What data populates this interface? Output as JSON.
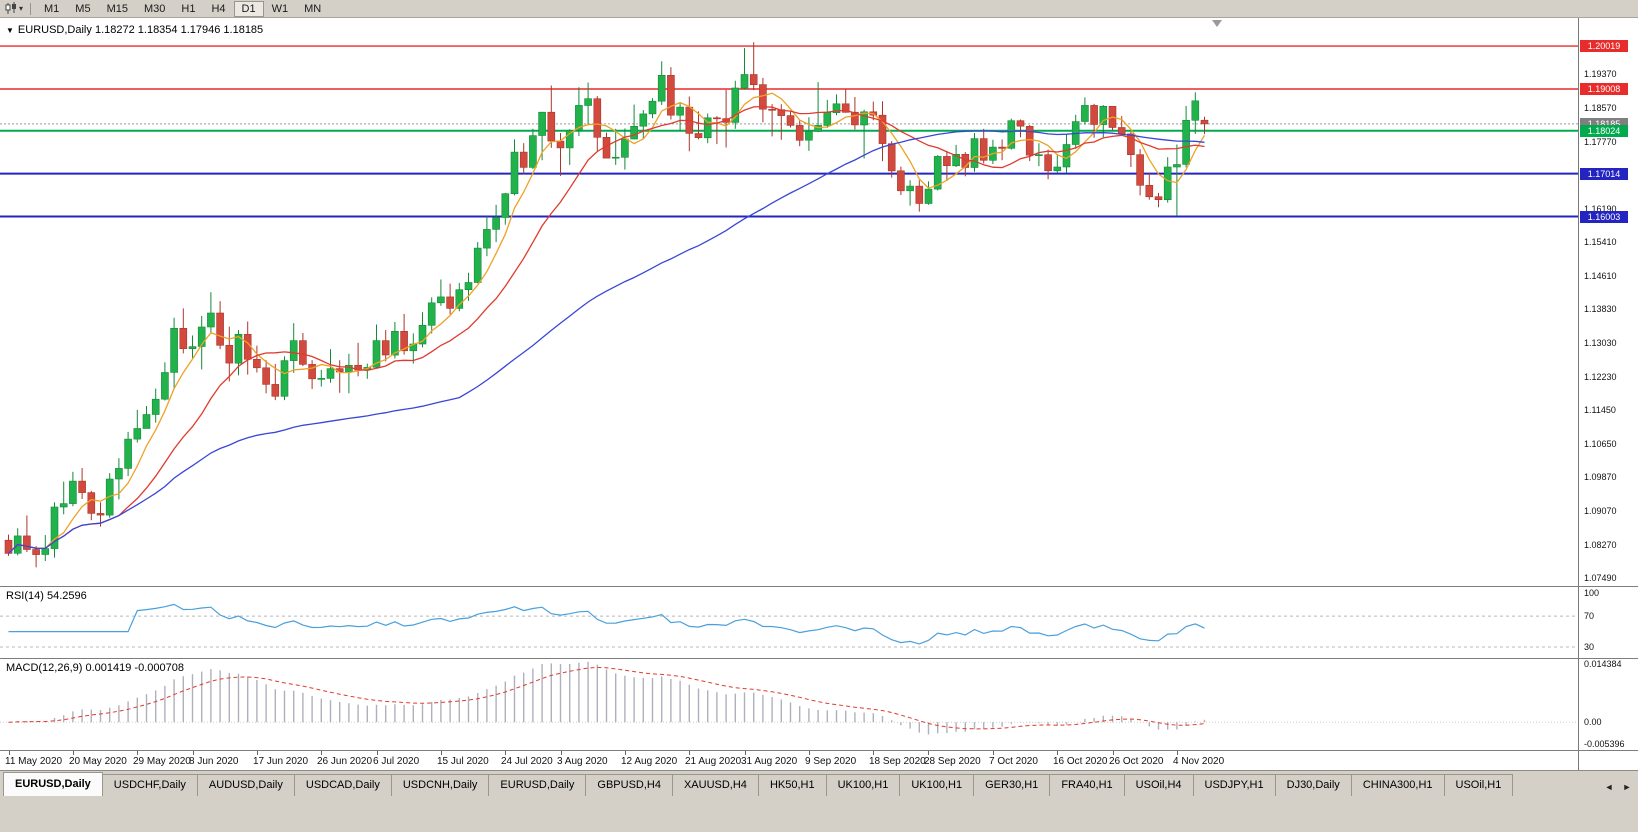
{
  "toolbar": {
    "chart_type_icon": "candlestick-chart",
    "dropdown_glyph": "▾",
    "timeframes": [
      "M1",
      "M5",
      "M15",
      "M30",
      "H1",
      "H4",
      "D1",
      "W1",
      "MN"
    ],
    "active_timeframe": "D1"
  },
  "chart": {
    "dropdown_glyph": "▼",
    "title_symbol": "EURUSD,Daily",
    "title_ohlc": "1.18272 1.18354 1.17946 1.18185"
  },
  "chart_data": {
    "type": "candlestick",
    "symbol": "EURUSD",
    "timeframe": "Daily",
    "ohlc_current": {
      "open": 1.18272,
      "high": 1.18354,
      "low": 1.17946,
      "close": 1.18185
    },
    "ylim": [
      1.073,
      1.2068
    ],
    "up_color": "#21b24b",
    "up_stroke": "#128a38",
    "down_color": "#d2493e",
    "down_stroke": "#a8362c",
    "price_ticks": [
      "1.19370",
      "1.18570",
      "1.17770",
      "1.16970",
      "1.16190",
      "1.15410",
      "1.14610",
      "1.13830",
      "1.13030",
      "1.12230",
      "1.11450",
      "1.10650",
      "1.09870",
      "1.09070",
      "1.08270",
      "1.07490"
    ],
    "levels": [
      {
        "price": 1.20019,
        "label": "1.20019",
        "color": "#e82c2c",
        "width": 1.4
      },
      {
        "price": 1.19008,
        "label": "1.19008",
        "color": "#e82c2c",
        "width": 1.4
      },
      {
        "price": 1.18024,
        "label": "1.18024",
        "color": "#00ab4e",
        "width": 2
      },
      {
        "price": 1.17014,
        "label": "1.17014",
        "color": "#2424c0",
        "width": 2
      },
      {
        "price": 1.16003,
        "label": "1.16003",
        "color": "#2424c0",
        "width": 2
      }
    ],
    "current_price": {
      "value": 1.18185,
      "label": "1.18185",
      "line_color": "#9a9a9a",
      "tag_color": "#7f7f7f"
    },
    "moving_averages": [
      {
        "period": 5,
        "color": "#efa126"
      },
      {
        "period": 13,
        "color": "#e03a2e"
      },
      {
        "period": 50,
        "color": "#3947d6"
      }
    ],
    "date_labels": [
      {
        "i": 0,
        "t": "11 May 2020"
      },
      {
        "i": 7,
        "t": "20 May 2020"
      },
      {
        "i": 14,
        "t": "29 May 2020"
      },
      {
        "i": 20,
        "t": "8 Jun 2020"
      },
      {
        "i": 27,
        "t": "17 Jun 2020"
      },
      {
        "i": 34,
        "t": "26 Jun 2020"
      },
      {
        "i": 40,
        "t": "6 Jul 2020"
      },
      {
        "i": 47,
        "t": "15 Jul 2020"
      },
      {
        "i": 54,
        "t": "24 Jul 2020"
      },
      {
        "i": 60,
        "t": "3 Aug 2020"
      },
      {
        "i": 67,
        "t": "12 Aug 2020"
      },
      {
        "i": 74,
        "t": "21 Aug 2020"
      },
      {
        "i": 80,
        "t": "31 Aug 2020"
      },
      {
        "i": 87,
        "t": "9 Sep 2020"
      },
      {
        "i": 94,
        "t": "18 Sep 2020"
      },
      {
        "i": 100,
        "t": "28 Sep 2020"
      },
      {
        "i": 107,
        "t": "7 Oct 2020"
      },
      {
        "i": 114,
        "t": "16 Oct 2020"
      },
      {
        "i": 120,
        "t": "26 Oct 2020"
      },
      {
        "i": 127,
        "t": "4 Nov 2020"
      }
    ],
    "candles": [
      [
        1.0838,
        1.0851,
        1.0801,
        1.0807
      ],
      [
        1.0807,
        1.0866,
        1.0802,
        1.0848
      ],
      [
        1.0848,
        1.0896,
        1.081,
        1.0816
      ],
      [
        1.0816,
        1.0824,
        1.0774,
        1.0804
      ],
      [
        1.0804,
        1.085,
        1.0789,
        1.0818
      ],
      [
        1.0818,
        1.0927,
        1.0797,
        1.0916
      ],
      [
        1.0916,
        1.0976,
        1.0899,
        1.0924
      ],
      [
        1.0924,
        1.0999,
        1.0918,
        1.0977
      ],
      [
        1.0977,
        1.1008,
        1.0935,
        1.095
      ],
      [
        1.095,
        1.0954,
        1.0885,
        1.0901
      ],
      [
        1.0901,
        1.0927,
        1.087,
        1.0897
      ],
      [
        1.0897,
        1.0996,
        1.0891,
        1.0982
      ],
      [
        1.0982,
        1.1031,
        1.0934,
        1.1007
      ],
      [
        1.1007,
        1.1093,
        1.0989,
        1.1076
      ],
      [
        1.1076,
        1.1145,
        1.1068,
        1.1101
      ],
      [
        1.1101,
        1.1154,
        1.1101,
        1.1134
      ],
      [
        1.1134,
        1.1195,
        1.1115,
        1.117
      ],
      [
        1.117,
        1.1257,
        1.1167,
        1.1233
      ],
      [
        1.1233,
        1.1362,
        1.1194,
        1.1337
      ],
      [
        1.1337,
        1.1384,
        1.1278,
        1.1289
      ],
      [
        1.1289,
        1.132,
        1.1267,
        1.1294
      ],
      [
        1.1294,
        1.1366,
        1.124,
        1.134
      ],
      [
        1.134,
        1.1422,
        1.1324,
        1.1373
      ],
      [
        1.1373,
        1.1401,
        1.1288,
        1.1297
      ],
      [
        1.1297,
        1.1341,
        1.1212,
        1.1255
      ],
      [
        1.1255,
        1.1333,
        1.1226,
        1.1323
      ],
      [
        1.1323,
        1.1353,
        1.1228,
        1.1264
      ],
      [
        1.1264,
        1.1296,
        1.1233,
        1.1244
      ],
      [
        1.1244,
        1.1262,
        1.1184,
        1.1205
      ],
      [
        1.1205,
        1.1253,
        1.1168,
        1.1177
      ],
      [
        1.1177,
        1.1271,
        1.1168,
        1.1261
      ],
      [
        1.1261,
        1.1349,
        1.1232,
        1.1308
      ],
      [
        1.1308,
        1.1326,
        1.1248,
        1.1252
      ],
      [
        1.1252,
        1.1262,
        1.1194,
        1.1218
      ],
      [
        1.1218,
        1.1239,
        1.12,
        1.1219
      ],
      [
        1.1219,
        1.1288,
        1.1209,
        1.1242
      ],
      [
        1.1242,
        1.1262,
        1.1185,
        1.1234
      ],
      [
        1.1234,
        1.1277,
        1.1184,
        1.125
      ],
      [
        1.125,
        1.1303,
        1.1224,
        1.1239
      ],
      [
        1.1239,
        1.1254,
        1.1218,
        1.1245
      ],
      [
        1.1245,
        1.1346,
        1.1243,
        1.1308
      ],
      [
        1.1308,
        1.1333,
        1.1259,
        1.1274
      ],
      [
        1.1274,
        1.1352,
        1.1266,
        1.133
      ],
      [
        1.133,
        1.1371,
        1.1275,
        1.1284
      ],
      [
        1.1284,
        1.1325,
        1.1254,
        1.13
      ],
      [
        1.13,
        1.1375,
        1.1292,
        1.1344
      ],
      [
        1.1344,
        1.141,
        1.1325,
        1.1397
      ],
      [
        1.1397,
        1.1452,
        1.139,
        1.1411
      ],
      [
        1.1411,
        1.1442,
        1.137,
        1.1384
      ],
      [
        1.1384,
        1.1444,
        1.1377,
        1.1428
      ],
      [
        1.1428,
        1.1468,
        1.1402,
        1.1445
      ],
      [
        1.1445,
        1.154,
        1.1443,
        1.1526
      ],
      [
        1.1526,
        1.1601,
        1.1507,
        1.157
      ],
      [
        1.157,
        1.1628,
        1.154,
        1.1598
      ],
      [
        1.1598,
        1.1656,
        1.1581,
        1.1654
      ],
      [
        1.1654,
        1.1782,
        1.165,
        1.1752
      ],
      [
        1.1752,
        1.1773,
        1.17,
        1.1716
      ],
      [
        1.1716,
        1.1807,
        1.1712,
        1.1791
      ],
      [
        1.1791,
        1.1847,
        1.1733,
        1.1846
      ],
      [
        1.1846,
        1.1909,
        1.1762,
        1.1778
      ],
      [
        1.1778,
        1.1797,
        1.1696,
        1.1762
      ],
      [
        1.1762,
        1.1806,
        1.1722,
        1.1803
      ],
      [
        1.1803,
        1.1905,
        1.179,
        1.1862
      ],
      [
        1.1862,
        1.1916,
        1.1818,
        1.1878
      ],
      [
        1.1878,
        1.1884,
        1.1754,
        1.1787
      ],
      [
        1.1787,
        1.1798,
        1.1737,
        1.1738
      ],
      [
        1.1738,
        1.1807,
        1.1722,
        1.174
      ],
      [
        1.174,
        1.1808,
        1.1711,
        1.1783
      ],
      [
        1.1783,
        1.1864,
        1.1782,
        1.1813
      ],
      [
        1.1813,
        1.1851,
        1.1782,
        1.1842
      ],
      [
        1.1842,
        1.1879,
        1.1832,
        1.1872
      ],
      [
        1.1872,
        1.1966,
        1.1863,
        1.1933
      ],
      [
        1.1933,
        1.1952,
        1.1829,
        1.1839
      ],
      [
        1.1839,
        1.1868,
        1.1801,
        1.1858
      ],
      [
        1.1858,
        1.1883,
        1.1754,
        1.1796
      ],
      [
        1.1796,
        1.1848,
        1.1782,
        1.1786
      ],
      [
        1.1786,
        1.1843,
        1.1773,
        1.1833
      ],
      [
        1.1833,
        1.1837,
        1.1771,
        1.1831
      ],
      [
        1.1831,
        1.1899,
        1.1763,
        1.1822
      ],
      [
        1.1822,
        1.192,
        1.1807,
        1.1903
      ],
      [
        1.1903,
        1.1997,
        1.1899,
        1.1935
      ],
      [
        1.1935,
        1.2011,
        1.1898,
        1.1911
      ],
      [
        1.1911,
        1.1927,
        1.1822,
        1.1853
      ],
      [
        1.1853,
        1.1865,
        1.1789,
        1.1852
      ],
      [
        1.1852,
        1.1865,
        1.1781,
        1.1838
      ],
      [
        1.1838,
        1.1848,
        1.181,
        1.1815
      ],
      [
        1.1815,
        1.1827,
        1.1766,
        1.178
      ],
      [
        1.178,
        1.1834,
        1.1755,
        1.1801
      ],
      [
        1.1801,
        1.1917,
        1.1799,
        1.1815
      ],
      [
        1.1815,
        1.1875,
        1.1809,
        1.1845
      ],
      [
        1.1845,
        1.1888,
        1.1839,
        1.1866
      ],
      [
        1.1866,
        1.19,
        1.1845,
        1.1846
      ],
      [
        1.1846,
        1.1882,
        1.1805,
        1.1816
      ],
      [
        1.1816,
        1.1852,
        1.1737,
        1.1847
      ],
      [
        1.1847,
        1.1871,
        1.1827,
        1.1839
      ],
      [
        1.1839,
        1.1872,
        1.1731,
        1.1772
      ],
      [
        1.1772,
        1.1778,
        1.1692,
        1.1708
      ],
      [
        1.1708,
        1.1718,
        1.1651,
        1.1661
      ],
      [
        1.1661,
        1.1686,
        1.1626,
        1.1672
      ],
      [
        1.1672,
        1.1686,
        1.1612,
        1.1631
      ],
      [
        1.1631,
        1.1683,
        1.1628,
        1.1665
      ],
      [
        1.1665,
        1.1745,
        1.1662,
        1.1742
      ],
      [
        1.1742,
        1.1755,
        1.1684,
        1.172
      ],
      [
        1.172,
        1.1769,
        1.1717,
        1.1747
      ],
      [
        1.1747,
        1.1752,
        1.1695,
        1.1716
      ],
      [
        1.1716,
        1.1797,
        1.1706,
        1.1784
      ],
      [
        1.1784,
        1.1807,
        1.1725,
        1.1733
      ],
      [
        1.1733,
        1.1781,
        1.1724,
        1.1764
      ],
      [
        1.1764,
        1.1782,
        1.1733,
        1.1761
      ],
      [
        1.1761,
        1.1831,
        1.1758,
        1.1826
      ],
      [
        1.1826,
        1.1829,
        1.1787,
        1.1813
      ],
      [
        1.1813,
        1.1816,
        1.1731,
        1.1745
      ],
      [
        1.1745,
        1.1773,
        1.1719,
        1.1746
      ],
      [
        1.1746,
        1.1758,
        1.1688,
        1.1708
      ],
      [
        1.1708,
        1.1747,
        1.1704,
        1.1717
      ],
      [
        1.1717,
        1.1794,
        1.1703,
        1.177
      ],
      [
        1.177,
        1.184,
        1.176,
        1.1824
      ],
      [
        1.1824,
        1.1881,
        1.1817,
        1.1862
      ],
      [
        1.1862,
        1.1866,
        1.1786,
        1.1817
      ],
      [
        1.1817,
        1.1863,
        1.1787,
        1.186
      ],
      [
        1.186,
        1.186,
        1.1803,
        1.181
      ],
      [
        1.181,
        1.1837,
        1.1793,
        1.1795
      ],
      [
        1.1795,
        1.18,
        1.1717,
        1.1746
      ],
      [
        1.1746,
        1.1759,
        1.165,
        1.1674
      ],
      [
        1.1674,
        1.1704,
        1.164,
        1.1647
      ],
      [
        1.1647,
        1.1656,
        1.1622,
        1.164
      ],
      [
        1.164,
        1.174,
        1.1633,
        1.1717
      ],
      [
        1.1717,
        1.177,
        1.1603,
        1.1723
      ],
      [
        1.1723,
        1.1861,
        1.1716,
        1.1827
      ],
      [
        1.1827,
        1.1893,
        1.1795,
        1.1873
      ],
      [
        1.18272,
        1.18354,
        1.17946,
        1.18185
      ]
    ]
  },
  "rsi": {
    "label": "RSI(14) 54.2596",
    "period": 14,
    "value": 54.2596,
    "line_color": "#4aa0dc",
    "axis_ticks": [
      {
        "v": 100,
        "t": "100"
      },
      {
        "v": 70,
        "t": "70"
      },
      {
        "v": 30,
        "t": "30"
      }
    ],
    "dashed_levels": [
      70,
      30
    ]
  },
  "macd": {
    "label": "MACD(12,26,9) 0.001419 -0.000708",
    "fast": 12,
    "slow": 26,
    "signal": 9,
    "main_value": 0.001419,
    "signal_value": -0.000708,
    "hist_color": "#b0b0bc",
    "signal_color": "#e03a2e",
    "axis_max": 0.014384,
    "axis_min": -0.005396,
    "axis_ticks": [
      {
        "v": 0.014384,
        "t": "0.014384"
      },
      {
        "v": 0,
        "t": "0.00"
      },
      {
        "v": -0.005396,
        "t": "-0.005396"
      }
    ]
  },
  "tabs": {
    "active_index": 0,
    "items": [
      "EURUSD,Daily",
      "USDCHF,Daily",
      "AUDUSD,Daily",
      "USDCAD,Daily",
      "USDCNH,Daily",
      "EURUSD,Daily",
      "GBPUSD,H4",
      "XAUUSD,H4",
      "HK50,H1",
      "UK100,H1",
      "UK100,H1",
      "GER30,H1",
      "FRA40,H1",
      "USOil,H4",
      "USDJPY,H1",
      "DJ30,Daily",
      "CHINA300,H1",
      "USOil,H1"
    ],
    "nav": [
      "◄",
      "►"
    ]
  }
}
